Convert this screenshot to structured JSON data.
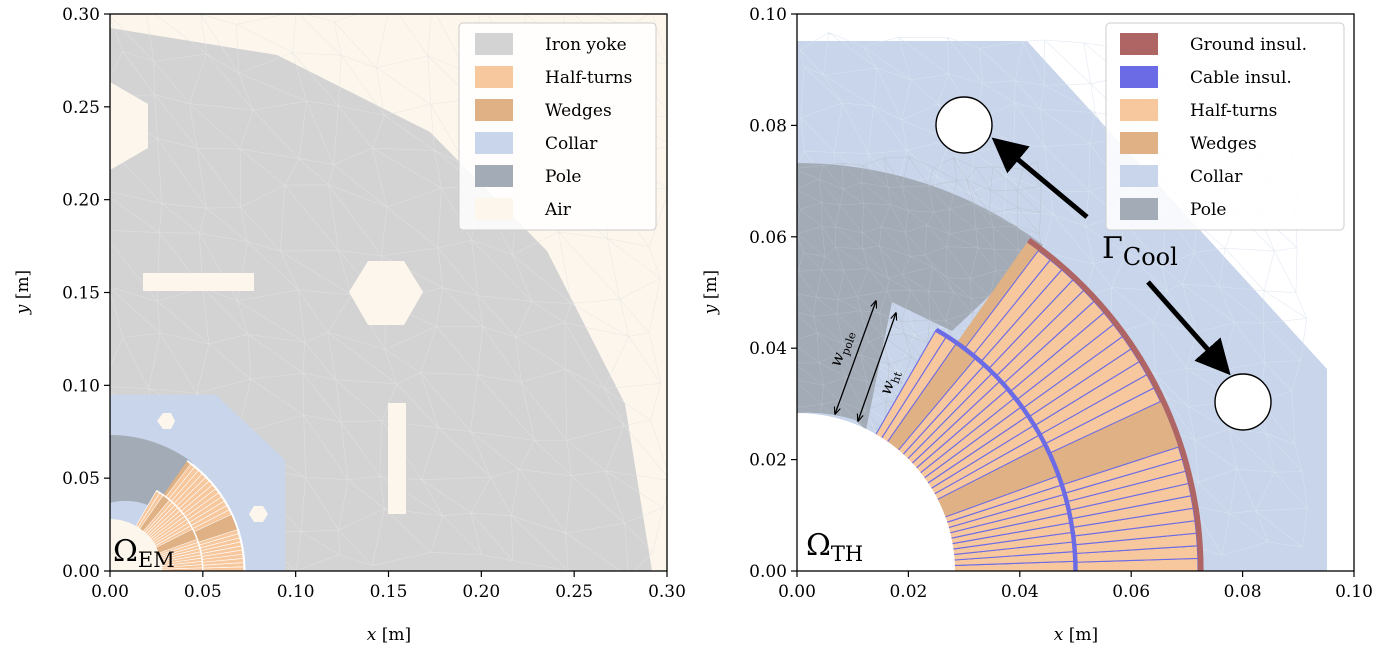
{
  "panels": [
    {
      "id": "em",
      "domain_label": {
        "symbol": "Ω",
        "subscript": "EM"
      },
      "x_ticks": [
        "0.00",
        "0.05",
        "0.10",
        "0.15",
        "0.20",
        "0.25",
        "0.30"
      ],
      "y_ticks": [
        "0.00",
        "0.05",
        "0.10",
        "0.15",
        "0.20",
        "0.25",
        "0.30"
      ],
      "x_label": {
        "var": "x",
        "unit": " [m]"
      },
      "y_label": {
        "var": "y",
        "unit": " [m]"
      },
      "xlim": [
        0,
        0.3
      ],
      "ylim": [
        0,
        0.3
      ],
      "legend": [
        {
          "label": "Iron yoke",
          "color": "#d3d3d3"
        },
        {
          "label": "Half-turns",
          "color": "#f7c79d"
        },
        {
          "label": "Wedges",
          "color": "#dfb184"
        },
        {
          "label": "Collar",
          "color": "#c8d5ea"
        },
        {
          "label": "Pole",
          "color": "#a3abb7"
        },
        {
          "label": "Air",
          "color": "#fdf6ec"
        }
      ]
    },
    {
      "id": "th",
      "domain_label": {
        "symbol": "Ω",
        "subscript": "TH"
      },
      "x_ticks": [
        "0.00",
        "0.02",
        "0.04",
        "0.06",
        "0.08",
        "0.10"
      ],
      "y_ticks": [
        "0.00",
        "0.02",
        "0.04",
        "0.06",
        "0.08",
        "0.10"
      ],
      "x_label": {
        "var": "x",
        "unit": " [m]"
      },
      "y_label": {
        "var": "y",
        "unit": " [m]"
      },
      "xlim": [
        0,
        0.1
      ],
      "ylim": [
        0,
        0.1
      ],
      "legend": [
        {
          "label": "Ground insul.",
          "color": "#b06565"
        },
        {
          "label": "Cable insul.",
          "color": "#6b6be6"
        },
        {
          "label": "Half-turns",
          "color": "#f7c79d"
        },
        {
          "label": "Wedges",
          "color": "#dfb184"
        },
        {
          "label": "Collar",
          "color": "#c8d5ea"
        },
        {
          "label": "Pole",
          "color": "#a3abb7"
        }
      ],
      "boundary_label": {
        "symbol": "Γ",
        "subscript": "Cool"
      },
      "width_labels": [
        {
          "symbol": "w",
          "subscript": "pole"
        },
        {
          "symbol": "w",
          "subscript": "ht"
        }
      ]
    }
  ]
}
